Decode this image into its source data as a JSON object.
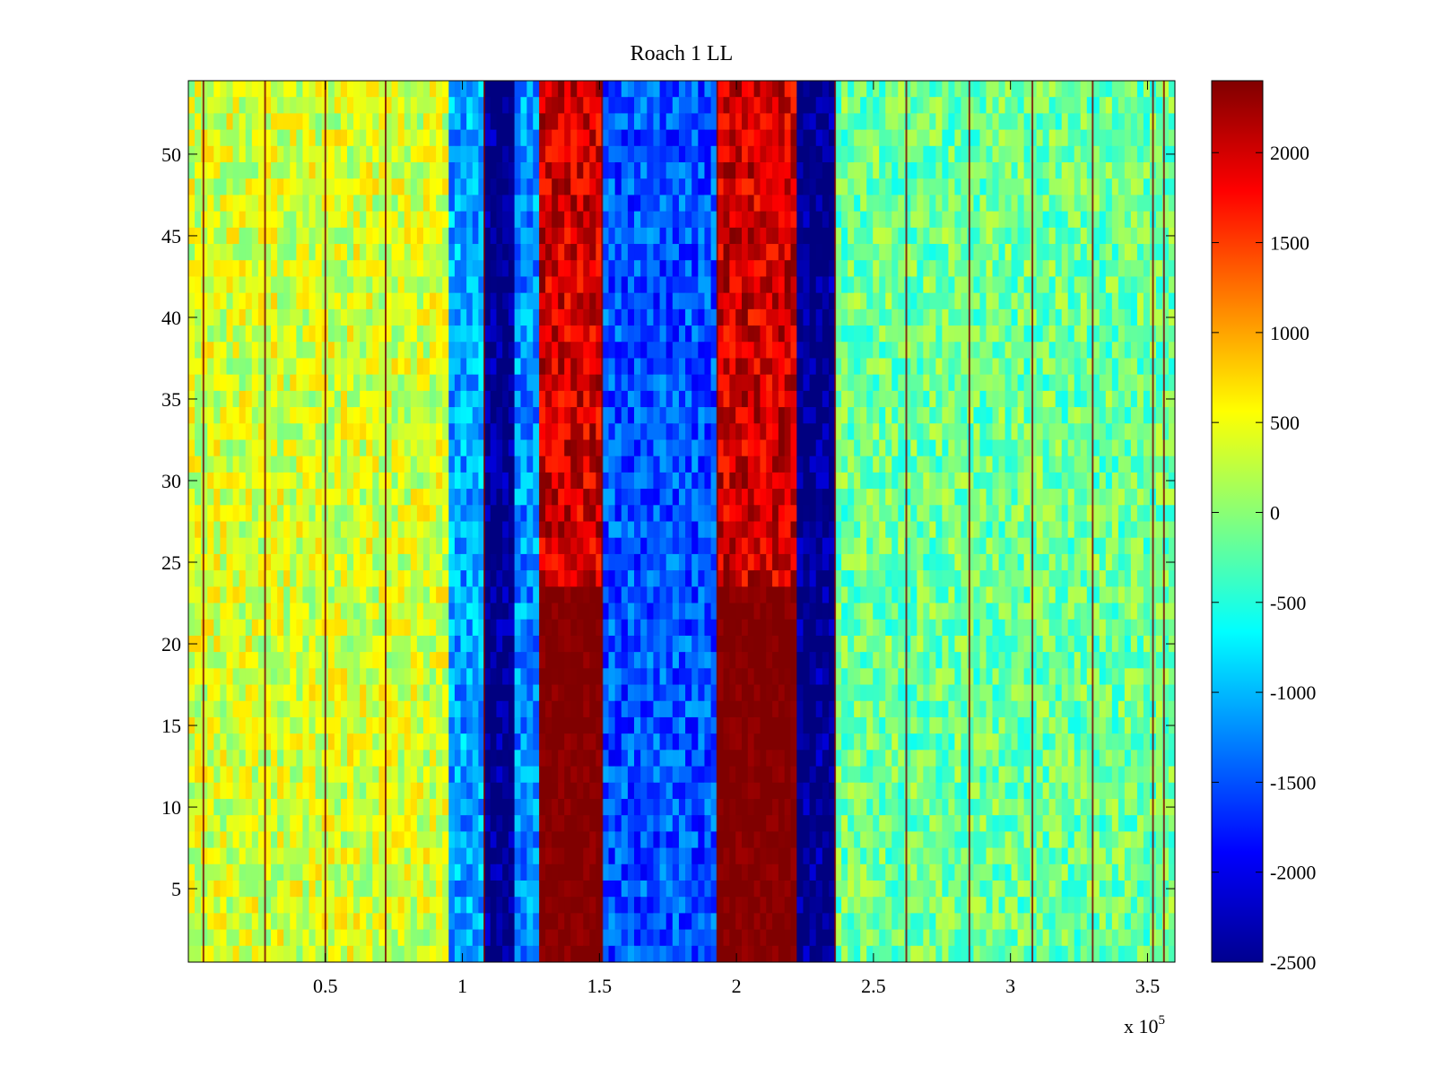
{
  "chart_data": {
    "type": "heatmap",
    "title": "Roach 1 LL",
    "xlabel": "",
    "ylabel": "",
    "x_exponent_label": "x 10",
    "x_exponent_power": "5",
    "xlim": [
      0,
      3.6
    ],
    "ylim": [
      0.5,
      54.5
    ],
    "rows": 54,
    "xticks": [
      0.5,
      1,
      1.5,
      2,
      2.5,
      3,
      3.5
    ],
    "xtick_labels": [
      "0.5",
      "1",
      "1.5",
      "2",
      "2.5",
      "3",
      "3.5"
    ],
    "yticks": [
      5,
      10,
      15,
      20,
      25,
      30,
      35,
      40,
      45,
      50
    ],
    "ytick_labels": [
      "5",
      "10",
      "15",
      "20",
      "25",
      "30",
      "35",
      "40",
      "45",
      "50"
    ],
    "colormap": "jet",
    "clim": [
      -2500,
      2400
    ],
    "colorbar_ticks": [
      2000,
      1500,
      1000,
      500,
      0,
      -500,
      -1000,
      -1500,
      -2000,
      -2500
    ],
    "colorbar_tick_labels": [
      "2000",
      "1500",
      "1000",
      "500",
      "0",
      "-500",
      "-1000",
      "-1500",
      "-2000",
      "-2500"
    ],
    "bands": [
      {
        "x_start": 0.0,
        "x_end": 0.95,
        "value": 350,
        "label": "left-region"
      },
      {
        "x_start": 0.95,
        "x_end": 1.08,
        "value": -1100,
        "label": "cyan-band"
      },
      {
        "x_start": 1.08,
        "x_end": 1.19,
        "value": -2500,
        "label": "deep-blue-band"
      },
      {
        "x_start": 1.19,
        "x_end": 1.28,
        "value": -1200,
        "label": "blue-band"
      },
      {
        "x_start": 1.28,
        "x_end": 1.51,
        "value": 2000,
        "label": "red-band"
      },
      {
        "x_start": 1.51,
        "x_end": 1.93,
        "value": -1500,
        "label": "blue-cyan-region"
      },
      {
        "x_start": 1.93,
        "x_end": 2.22,
        "value": 2000,
        "label": "red-band"
      },
      {
        "x_start": 2.22,
        "x_end": 2.36,
        "value": -2500,
        "label": "deep-blue-band"
      },
      {
        "x_start": 2.36,
        "x_end": 3.6,
        "value": -150,
        "label": "right-region"
      }
    ],
    "vertical_lines_x": [
      0.055,
      0.28,
      0.5,
      0.72,
      1.08,
      1.51,
      1.93,
      2.36,
      2.62,
      2.85,
      3.08,
      3.3,
      3.52,
      3.56
    ]
  }
}
